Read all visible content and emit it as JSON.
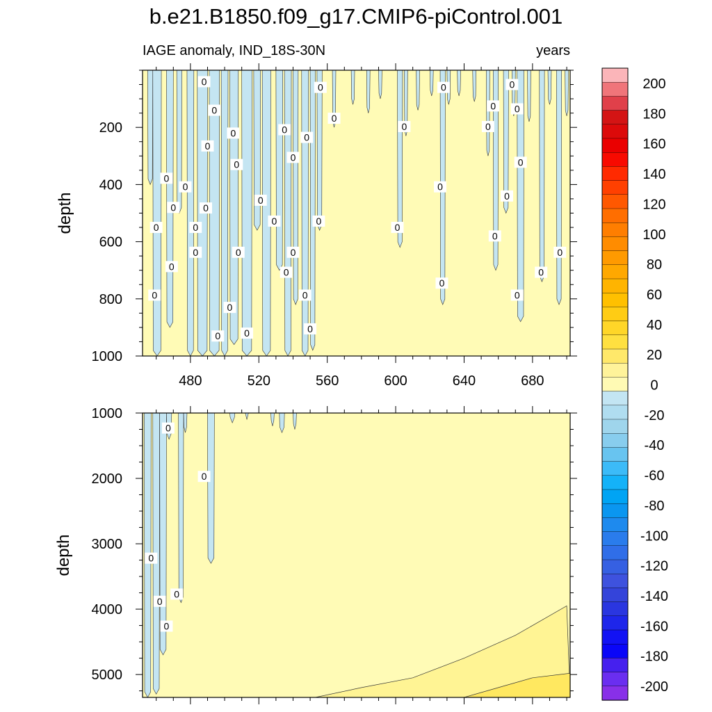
{
  "chart_data": {
    "type": "heatmap",
    "title": "b.e21.B1850.f09_g17.CMIP6-piControl.001",
    "subtitle_left": "IAGE anomaly, IND_18S-30N",
    "subtitle_right": "years",
    "xlabel": "",
    "ylabel": "depth",
    "xlim": [
      452,
      702
    ],
    "x_ticks": [
      480,
      520,
      560,
      600,
      640,
      680
    ],
    "panels": [
      {
        "name": "upper",
        "ylim": [
          0,
          1000
        ],
        "y_ticks": [
          200,
          400,
          600,
          800,
          1000
        ],
        "y_tick_labels": [
          "200",
          "400",
          "600",
          "800",
          "1000"
        ],
        "x_tick_labels": [
          "480",
          "520",
          "560",
          "600",
          "640",
          "680"
        ],
        "negative_bands": [
          {
            "x": 455,
            "w": 3,
            "bottom": 400
          },
          {
            "x": 458,
            "w": 5,
            "bottom": 1000
          },
          {
            "x": 466,
            "w": 4,
            "bottom": 900
          },
          {
            "x": 472,
            "w": 3,
            "bottom": 500
          },
          {
            "x": 478,
            "w": 4,
            "bottom": 1000
          },
          {
            "x": 484,
            "w": 6,
            "bottom": 1000
          },
          {
            "x": 491,
            "w": 6,
            "bottom": 1000
          },
          {
            "x": 498,
            "w": 4,
            "bottom": 1000
          },
          {
            "x": 503,
            "w": 5,
            "bottom": 960
          },
          {
            "x": 510,
            "w": 6,
            "bottom": 1000
          },
          {
            "x": 517,
            "w": 4,
            "bottom": 560
          },
          {
            "x": 522,
            "w": 5,
            "bottom": 1000
          },
          {
            "x": 530,
            "w": 4,
            "bottom": 700
          },
          {
            "x": 535,
            "w": 4,
            "bottom": 1000
          },
          {
            "x": 540,
            "w": 3,
            "bottom": 820
          },
          {
            "x": 545,
            "w": 4,
            "bottom": 1000
          },
          {
            "x": 550,
            "w": 3,
            "bottom": 980
          },
          {
            "x": 554,
            "w": 3,
            "bottom": 560
          },
          {
            "x": 563,
            "w": 2,
            "bottom": 200
          },
          {
            "x": 574,
            "w": 2,
            "bottom": 120
          },
          {
            "x": 583,
            "w": 2,
            "bottom": 150
          },
          {
            "x": 590,
            "w": 2,
            "bottom": 100
          },
          {
            "x": 601,
            "w": 3,
            "bottom": 620
          },
          {
            "x": 605,
            "w": 2,
            "bottom": 230
          },
          {
            "x": 612,
            "w": 2,
            "bottom": 140
          },
          {
            "x": 620,
            "w": 2,
            "bottom": 90
          },
          {
            "x": 626,
            "w": 3,
            "bottom": 820
          },
          {
            "x": 630,
            "w": 2,
            "bottom": 120
          },
          {
            "x": 636,
            "w": 2,
            "bottom": 90
          },
          {
            "x": 645,
            "w": 2,
            "bottom": 110
          },
          {
            "x": 653,
            "w": 2,
            "bottom": 300
          },
          {
            "x": 657,
            "w": 3,
            "bottom": 700
          },
          {
            "x": 663,
            "w": 3,
            "bottom": 500
          },
          {
            "x": 668,
            "w": 2,
            "bottom": 160
          },
          {
            "x": 671,
            "w": 4,
            "bottom": 880
          },
          {
            "x": 677,
            "w": 2,
            "bottom": 180
          },
          {
            "x": 684,
            "w": 3,
            "bottom": 740
          },
          {
            "x": 689,
            "w": 2,
            "bottom": 120
          },
          {
            "x": 694,
            "w": 3,
            "bottom": 820
          },
          {
            "x": 699,
            "w": 2,
            "bottom": 160
          }
        ],
        "contour_labels": [
          {
            "x": 488,
            "y": 40,
            "text": "0"
          },
          {
            "x": 494,
            "y": 140,
            "text": "0"
          },
          {
            "x": 505,
            "y": 220,
            "text": "0"
          },
          {
            "x": 490,
            "y": 265,
            "text": "0"
          },
          {
            "x": 507,
            "y": 330,
            "text": "0"
          },
          {
            "x": 466,
            "y": 378,
            "text": "0"
          },
          {
            "x": 477,
            "y": 408,
            "text": "0"
          },
          {
            "x": 521,
            "y": 455,
            "text": "0"
          },
          {
            "x": 470,
            "y": 480,
            "text": "0"
          },
          {
            "x": 489,
            "y": 482,
            "text": "0"
          },
          {
            "x": 460,
            "y": 550,
            "text": "0"
          },
          {
            "x": 483,
            "y": 550,
            "text": "0"
          },
          {
            "x": 529,
            "y": 528,
            "text": "0"
          },
          {
            "x": 555,
            "y": 528,
            "text": "0"
          },
          {
            "x": 483,
            "y": 637,
            "text": "0"
          },
          {
            "x": 508,
            "y": 637,
            "text": "0"
          },
          {
            "x": 540,
            "y": 637,
            "text": "0"
          },
          {
            "x": 469,
            "y": 687,
            "text": "0"
          },
          {
            "x": 536,
            "y": 707,
            "text": "0"
          },
          {
            "x": 459,
            "y": 787,
            "text": "0"
          },
          {
            "x": 547,
            "y": 787,
            "text": "0"
          },
          {
            "x": 503,
            "y": 830,
            "text": "0"
          },
          {
            "x": 550,
            "y": 905,
            "text": "0"
          },
          {
            "x": 496,
            "y": 930,
            "text": "0"
          },
          {
            "x": 513,
            "y": 920,
            "text": "0"
          },
          {
            "x": 535,
            "y": 208,
            "text": "0"
          },
          {
            "x": 548,
            "y": 235,
            "text": "0"
          },
          {
            "x": 540,
            "y": 305,
            "text": "0"
          },
          {
            "x": 556,
            "y": 60,
            "text": "0"
          },
          {
            "x": 564,
            "y": 168,
            "text": "0"
          },
          {
            "x": 605,
            "y": 197,
            "text": "0"
          },
          {
            "x": 601,
            "y": 550,
            "text": "0"
          },
          {
            "x": 628,
            "y": 60,
            "text": "0"
          },
          {
            "x": 626,
            "y": 408,
            "text": "0"
          },
          {
            "x": 627,
            "y": 745,
            "text": "0"
          },
          {
            "x": 654,
            "y": 197,
            "text": "0"
          },
          {
            "x": 657,
            "y": 125,
            "text": "0"
          },
          {
            "x": 658,
            "y": 580,
            "text": "0"
          },
          {
            "x": 665,
            "y": 440,
            "text": "0"
          },
          {
            "x": 668,
            "y": 50,
            "text": "0"
          },
          {
            "x": 671,
            "y": 135,
            "text": "0"
          },
          {
            "x": 673,
            "y": 322,
            "text": "0"
          },
          {
            "x": 671,
            "y": 787,
            "text": "0"
          },
          {
            "x": 685,
            "y": 707,
            "text": "0"
          },
          {
            "x": 696,
            "y": 637,
            "text": "0"
          }
        ]
      },
      {
        "name": "lower",
        "ylim": [
          1000,
          5350
        ],
        "y_ticks": [
          1000,
          2000,
          3000,
          4000,
          5000
        ],
        "y_tick_labels": [
          "1000",
          "2000",
          "3000",
          "4000",
          "5000"
        ],
        "x_tick_labels": [],
        "negative_bands": [
          {
            "x": 453,
            "w": 4,
            "bottom": 5350
          },
          {
            "x": 458,
            "w": 4,
            "bottom": 5300
          },
          {
            "x": 462,
            "w": 4,
            "bottom": 4700
          },
          {
            "x": 466,
            "w": 3,
            "bottom": 1400
          },
          {
            "x": 473,
            "w": 3,
            "bottom": 3900
          },
          {
            "x": 476,
            "w": 2,
            "bottom": 1300
          },
          {
            "x": 490,
            "w": 4,
            "bottom": 3300
          },
          {
            "x": 503,
            "w": 3,
            "bottom": 1150
          },
          {
            "x": 512,
            "w": 2,
            "bottom": 1100
          },
          {
            "x": 527,
            "w": 2,
            "bottom": 1200
          },
          {
            "x": 532,
            "w": 3,
            "bottom": 1300
          },
          {
            "x": 540,
            "w": 2,
            "bottom": 1250
          }
        ],
        "positive_boundary_20": [
          [
            553,
            5350
          ],
          [
            580,
            5200
          ],
          [
            610,
            5050
          ],
          [
            640,
            4750
          ],
          [
            670,
            4400
          ],
          [
            700,
            3950
          ]
        ],
        "positive_boundary_40": [
          [
            640,
            5350
          ],
          [
            660,
            5200
          ],
          [
            680,
            5050
          ],
          [
            702,
            4980
          ]
        ],
        "contour_labels": [
          {
            "x": 467,
            "y": 1230,
            "text": "0"
          },
          {
            "x": 488,
            "y": 1970,
            "text": "0"
          },
          {
            "x": 457,
            "y": 3220,
            "text": "0"
          },
          {
            "x": 462,
            "y": 3880,
            "text": "0"
          },
          {
            "x": 472,
            "y": 3770,
            "text": "0"
          },
          {
            "x": 466,
            "y": 4260,
            "text": "0"
          }
        ]
      }
    ],
    "colorbar": {
      "labels": [
        "200",
        "180",
        "160",
        "140",
        "120",
        "100",
        "80",
        "60",
        "40",
        "20",
        "0",
        "-20",
        "-40",
        "-60",
        "-80",
        "-100",
        "-120",
        "-140",
        "-160",
        "-180",
        "-200"
      ],
      "colors_top_to_bottom": [
        "#fbb5b9",
        "#f0757a",
        "#e0404a",
        "#d41414",
        "#dc0a0a",
        "#ea0000",
        "#f80a00",
        "#ff2a00",
        "#ff4000",
        "#ff5800",
        "#ff6e00",
        "#ff7e00",
        "#ff8c00",
        "#ff9a00",
        "#ffa800",
        "#ffb400",
        "#ffc000",
        "#ffcc14",
        "#ffd628",
        "#ffe040",
        "#ffe86a",
        "#fff39a",
        "#fffab4",
        "#c3e5f3",
        "#b0ddf0",
        "#9fd5ec",
        "#88cdee",
        "#68c4f0",
        "#3cbbf8",
        "#14b2f8",
        "#00a4f4",
        "#0a96f0",
        "#1e8aee",
        "#2a7cec",
        "#306ee8",
        "#3660e2",
        "#3e52de",
        "#3444da",
        "#2a36e0",
        "#1e26ea",
        "#1212f4",
        "#0a06f8",
        "#4620ee",
        "#6a2ef0",
        "#8830e8"
      ]
    },
    "colors": {
      "negative_fill": "#c4e5f2",
      "zero_fill": "#fffbb6",
      "pos20_fill": "#fff494",
      "pos40_fill": "#ffe860"
    }
  }
}
